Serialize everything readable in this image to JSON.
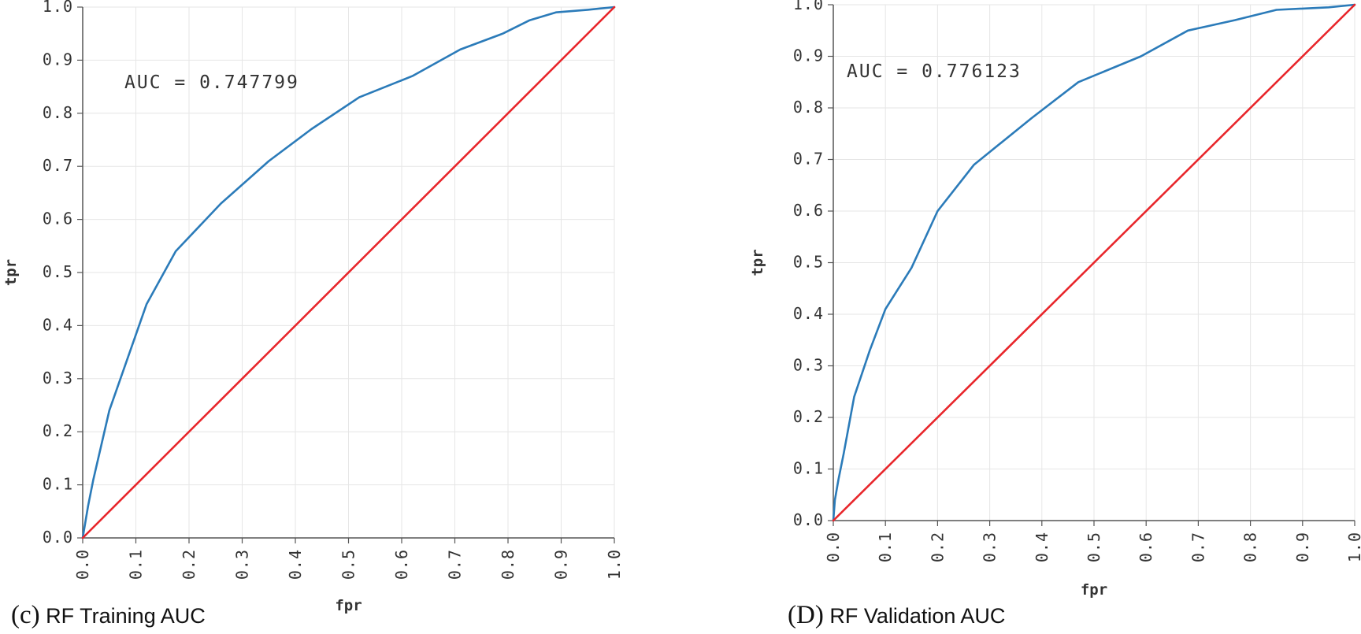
{
  "chart_data": [
    {
      "type": "line",
      "caption_letter": "(c)",
      "caption_text": "RF Training AUC",
      "annotation": "AUC = 0.747799",
      "xlabel": "fpr",
      "ylabel": "tpr",
      "xlim": [
        0,
        1
      ],
      "ylim": [
        0,
        1
      ],
      "x_ticks": [
        "0.0",
        "0.1",
        "0.2",
        "0.3",
        "0.4",
        "0.5",
        "0.6",
        "0.7",
        "0.8",
        "0.9",
        "1.0"
      ],
      "y_ticks": [
        "0.0",
        "0.1",
        "0.2",
        "0.3",
        "0.4",
        "0.5",
        "0.6",
        "0.7",
        "0.8",
        "0.9",
        "1.0"
      ],
      "grid": true,
      "series": [
        {
          "color": "#2b7bb9",
          "x": [
            0.0,
            0.005,
            0.01,
            0.02,
            0.05,
            0.085,
            0.12,
            0.175,
            0.26,
            0.35,
            0.43,
            0.52,
            0.62,
            0.71,
            0.79,
            0.84,
            0.89,
            0.95,
            1.0
          ],
          "y": [
            0.0,
            0.03,
            0.06,
            0.11,
            0.24,
            0.34,
            0.44,
            0.54,
            0.63,
            0.71,
            0.77,
            0.83,
            0.87,
            0.92,
            0.95,
            0.975,
            0.99,
            0.995,
            1.0
          ]
        },
        {
          "color": "#e8262b",
          "x": [
            0.0,
            1.0
          ],
          "y": [
            0.0,
            1.0
          ]
        }
      ]
    },
    {
      "type": "line",
      "caption_letter": "(D)",
      "caption_text": "RF Validation AUC",
      "annotation": "AUC = 0.776123",
      "xlabel": "fpr",
      "ylabel": "tpr",
      "xlim": [
        0,
        1
      ],
      "ylim": [
        0,
        1
      ],
      "x_ticks": [
        "0.0",
        "0.1",
        "0.2",
        "0.3",
        "0.4",
        "0.5",
        "0.6",
        "0.7",
        "0.8",
        "0.9",
        "1.0"
      ],
      "y_ticks": [
        "0.0",
        "0.1",
        "0.2",
        "0.3",
        "0.4",
        "0.5",
        "0.6",
        "0.7",
        "0.8",
        "0.9",
        "1.0"
      ],
      "grid": true,
      "series": [
        {
          "color": "#2b7bb9",
          "x": [
            0.0,
            0.003,
            0.01,
            0.02,
            0.04,
            0.07,
            0.1,
            0.15,
            0.2,
            0.27,
            0.38,
            0.47,
            0.59,
            0.68,
            0.77,
            0.85,
            0.95,
            1.0
          ],
          "y": [
            0.0,
            0.04,
            0.08,
            0.13,
            0.24,
            0.33,
            0.41,
            0.49,
            0.6,
            0.69,
            0.78,
            0.85,
            0.9,
            0.95,
            0.97,
            0.99,
            0.995,
            1.0
          ]
        },
        {
          "color": "#e8262b",
          "x": [
            0.0,
            1.0
          ],
          "y": [
            0.0,
            1.0
          ]
        }
      ]
    }
  ]
}
